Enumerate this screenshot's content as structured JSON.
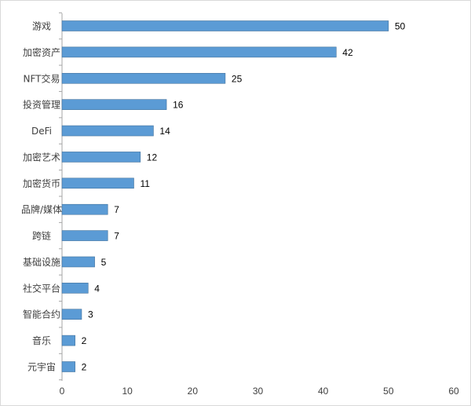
{
  "chart_data": {
    "type": "bar",
    "orientation": "horizontal",
    "categories": [
      "游戏",
      "加密资产",
      "NFT交易",
      "投资管理",
      "DeFi",
      "加密艺术",
      "加密货币",
      "品牌/媒体",
      "跨链",
      "基础设施",
      "社交平台",
      "智能合约",
      "音乐",
      "元宇宙"
    ],
    "values": [
      50,
      42,
      25,
      16,
      14,
      12,
      11,
      7,
      7,
      5,
      4,
      3,
      2,
      2
    ],
    "xlim": [
      0,
      60
    ],
    "xticks": [
      0,
      10,
      20,
      30,
      40,
      50,
      60
    ],
    "grid": false,
    "legend": "none",
    "title": "",
    "xlabel": "",
    "ylabel": "",
    "bar_color": "#5b9bd5",
    "bar_edge_color": "#41719c",
    "axis_color": "#a6a6a6"
  }
}
